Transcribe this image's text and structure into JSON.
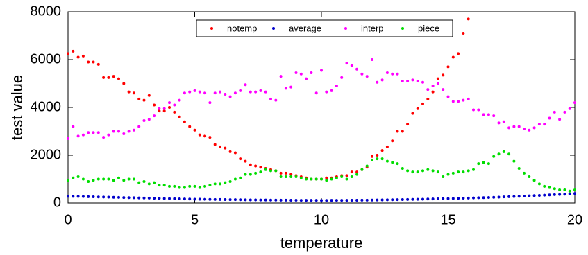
{
  "chart_data": {
    "type": "scatter",
    "xlabel": "temperature",
    "ylabel": "test value",
    "xlim": [
      0,
      20
    ],
    "xticks": [
      0,
      5,
      10,
      15,
      20
    ],
    "ylim": [
      0,
      8000
    ],
    "yticks": [
      0,
      2000,
      4000,
      6000,
      8000
    ],
    "legend": "top",
    "x": [
      0,
      0.2,
      0.4,
      0.6,
      0.8,
      1,
      1.2,
      1.4,
      1.6,
      1.8,
      2,
      2.2,
      2.4,
      2.6,
      2.8,
      3,
      3.2,
      3.4,
      3.6,
      3.8,
      4,
      4.2,
      4.4,
      4.6,
      4.8,
      5,
      5.2,
      5.4,
      5.6,
      5.8,
      6,
      6.2,
      6.4,
      6.6,
      6.8,
      7,
      7.2,
      7.4,
      7.6,
      7.8,
      8,
      8.2,
      8.4,
      8.6,
      8.8,
      9,
      9.2,
      9.4,
      9.6,
      9.8,
      10,
      10.2,
      10.4,
      10.6,
      10.8,
      11,
      11.2,
      11.4,
      11.6,
      11.8,
      12,
      12.2,
      12.4,
      12.6,
      12.8,
      13,
      13.2,
      13.4,
      13.6,
      13.8,
      14,
      14.2,
      14.4,
      14.6,
      14.8,
      15,
      15.2,
      15.4,
      15.6,
      15.8,
      16,
      16.2,
      16.4,
      16.6,
      16.8,
      17,
      17.2,
      17.4,
      17.6,
      17.8,
      18,
      18.2,
      18.4,
      18.6,
      18.8,
      19,
      19.2,
      19.4,
      19.6,
      19.8,
      20
    ],
    "series": [
      {
        "name": "notemp",
        "color": "#ff0000",
        "values": [
          6250,
          6350,
          6100,
          6150,
          5900,
          5900,
          5800,
          5250,
          5250,
          5300,
          5200,
          5000,
          4650,
          4600,
          4350,
          4300,
          4500,
          4100,
          3850,
          3850,
          4000,
          3800,
          3600,
          3400,
          3200,
          3050,
          2850,
          2800,
          2750,
          2450,
          2350,
          2300,
          2150,
          2100,
          1850,
          1750,
          1600,
          1550,
          1500,
          1450,
          1400,
          1350,
          1250,
          1250,
          1200,
          1150,
          1100,
          1050,
          1000,
          1000,
          1000,
          1050,
          1050,
          1100,
          1150,
          1150,
          1300,
          1300,
          1400,
          1500,
          1950,
          2000,
          2200,
          2350,
          2600,
          3000,
          3000,
          3300,
          3750,
          3950,
          4150,
          4350,
          4650,
          5200,
          5350,
          5700,
          6100,
          6250,
          7100,
          7700,
          null,
          null,
          null,
          null,
          null,
          null,
          null,
          null,
          null,
          null,
          null,
          null,
          null,
          null,
          null,
          null,
          null,
          null,
          null,
          null,
          null
        ]
      },
      {
        "name": "average",
        "color": "#0000cc",
        "values": [
          280,
          280,
          275,
          270,
          265,
          260,
          255,
          250,
          245,
          240,
          235,
          230,
          225,
          220,
          215,
          210,
          205,
          200,
          195,
          190,
          185,
          180,
          175,
          170,
          165,
          160,
          158,
          155,
          152,
          150,
          148,
          145,
          142,
          140,
          138,
          135,
          132,
          130,
          128,
          126,
          124,
          122,
          120,
          118,
          116,
          115,
          114,
          113,
          112,
          111,
          110,
          110,
          111,
          112,
          113,
          114,
          115,
          117,
          119,
          121,
          124,
          127,
          130,
          133,
          136,
          140,
          144,
          148,
          152,
          156,
          160,
          165,
          170,
          175,
          180,
          185,
          190,
          196,
          202,
          208,
          214,
          220,
          226,
          232,
          240,
          248,
          256,
          264,
          272,
          280,
          290,
          300,
          310,
          320,
          330,
          340,
          350,
          360,
          370,
          385,
          400
        ]
      },
      {
        "name": "interp",
        "color": "#ff00ff",
        "values": [
          2700,
          3200,
          2800,
          2850,
          2950,
          2950,
          2950,
          2750,
          2850,
          3000,
          3000,
          2900,
          3000,
          3050,
          3200,
          3450,
          3500,
          3650,
          3950,
          3950,
          4200,
          4100,
          4300,
          4600,
          4650,
          4700,
          4650,
          4600,
          4200,
          4600,
          4650,
          4550,
          4450,
          4600,
          4700,
          4950,
          4650,
          4650,
          4700,
          4650,
          4350,
          4300,
          5300,
          4800,
          4850,
          5450,
          5400,
          5200,
          5450,
          4600,
          5550,
          4650,
          4700,
          4900,
          5250,
          5850,
          5750,
          5600,
          5400,
          5300,
          6000,
          5050,
          5150,
          5450,
          5400,
          5400,
          5100,
          5100,
          5150,
          5100,
          5050,
          4750,
          4900,
          5000,
          4750,
          4450,
          4250,
          4250,
          4300,
          4350,
          3900,
          3900,
          3700,
          3700,
          3650,
          3350,
          3400,
          3150,
          3200,
          3200,
          3100,
          3050,
          3150,
          3300,
          3300,
          3550,
          3800,
          3500,
          3800,
          3950,
          4200
        ]
      },
      {
        "name": "piece",
        "color": "#00dd00",
        "values": [
          950,
          1050,
          1100,
          1000,
          900,
          950,
          1000,
          1000,
          1000,
          950,
          1050,
          950,
          1000,
          1000,
          850,
          900,
          800,
          850,
          750,
          750,
          700,
          700,
          650,
          650,
          700,
          700,
          650,
          700,
          750,
          800,
          800,
          850,
          900,
          1000,
          1050,
          1200,
          1200,
          1250,
          1300,
          1400,
          1350,
          1350,
          1100,
          1100,
          1100,
          1100,
          1050,
          1000,
          1000,
          1000,
          1000,
          950,
          1000,
          1050,
          1100,
          1000,
          1100,
          1200,
          1400,
          1550,
          1800,
          1850,
          1850,
          1750,
          1700,
          1650,
          1450,
          1350,
          1300,
          1300,
          1350,
          1400,
          1350,
          1300,
          1100,
          1200,
          1250,
          1300,
          1300,
          1350,
          1400,
          1650,
          1700,
          1650,
          1950,
          2050,
          2150,
          2050,
          1750,
          1450,
          1250,
          1100,
          950,
          800,
          700,
          650,
          600,
          550,
          550,
          500,
          550
        ]
      }
    ]
  }
}
